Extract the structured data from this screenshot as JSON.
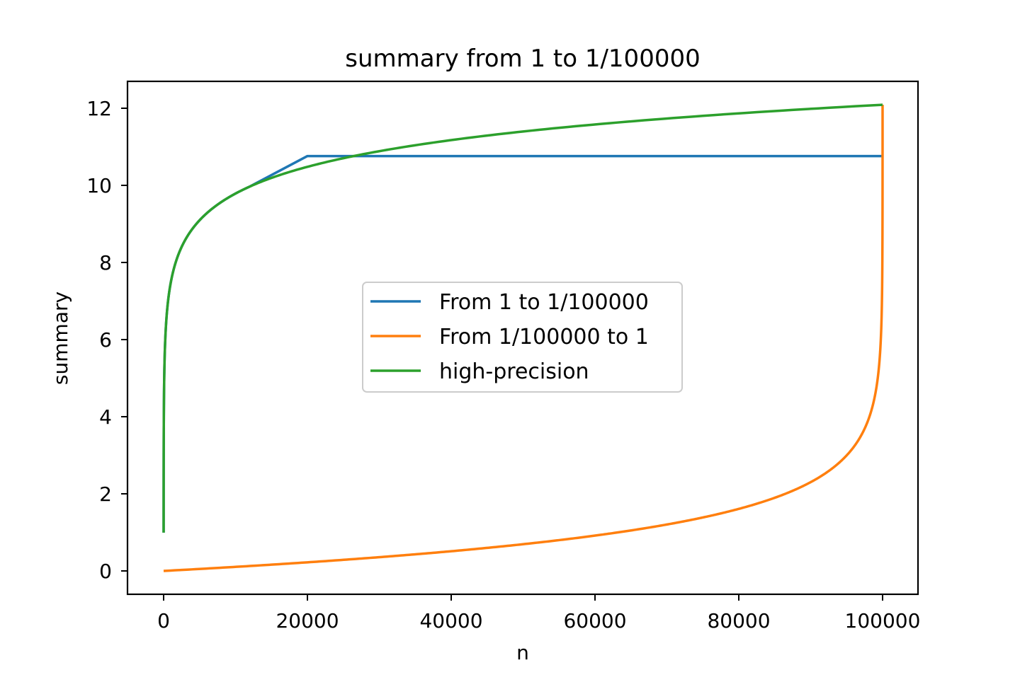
{
  "chart_data": {
    "type": "line",
    "title": "summary from 1 to 1/100000",
    "xlabel": "n",
    "ylabel": "summary",
    "xlim": [
      -5000,
      105000
    ],
    "ylim": [
      -0.6,
      12.7
    ],
    "xticks": [
      0,
      20000,
      40000,
      60000,
      80000,
      100000
    ],
    "xtick_labels": [
      "0",
      "20000",
      "40000",
      "60000",
      "80000",
      "100000"
    ],
    "yticks": [
      0,
      2,
      4,
      6,
      8,
      10,
      12
    ],
    "ytick_labels": [
      "0",
      "2",
      "4",
      "6",
      "8",
      "10",
      "12"
    ],
    "grid": false,
    "legend_position": "center",
    "series": [
      {
        "name": "From 1 to 1/100000",
        "color": "#1f77b4",
        "x": [
          1,
          1000,
          2000,
          5000,
          10000,
          15000,
          20000,
          30000,
          40000,
          60000,
          80000,
          100000
        ],
        "values": [
          1.0,
          7.49,
          8.18,
          9.09,
          9.79,
          10.19,
          10.76,
          10.76,
          10.76,
          10.76,
          10.76,
          10.76
        ]
      },
      {
        "name": "From 1/100000 to 1",
        "color": "#ff7f0e",
        "x": [
          0,
          10000,
          20000,
          30000,
          40000,
          50000,
          60000,
          70000,
          80000,
          90000,
          95000,
          98000,
          99000,
          99900,
          100000
        ],
        "values": [
          0.0,
          0.11,
          0.22,
          0.36,
          0.51,
          0.69,
          0.92,
          1.2,
          1.61,
          2.3,
          3.0,
          3.9,
          4.61,
          6.91,
          12.09
        ]
      },
      {
        "name": "high-precision",
        "color": "#2ca02c",
        "x": [
          1,
          10,
          100,
          1000,
          2000,
          5000,
          10000,
          20000,
          26000,
          40000,
          60000,
          80000,
          100000
        ],
        "values": [
          1.0,
          2.93,
          5.19,
          7.49,
          8.18,
          9.09,
          9.79,
          10.48,
          10.76,
          11.17,
          11.58,
          11.87,
          12.09
        ]
      }
    ]
  }
}
